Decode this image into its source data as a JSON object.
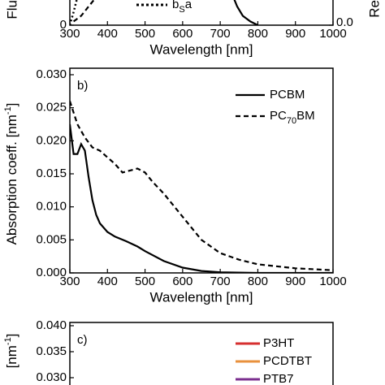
{
  "chart_data": [
    {
      "type": "line",
      "xlim": [
        300,
        1000
      ],
      "xticks": [
        300,
        400,
        500,
        600,
        700,
        800,
        900,
        1000
      ],
      "xlabel": "Wavelength [nm]",
      "ylabel": "Flu",
      "y2label": "Re",
      "ylim": [
        0,
        1
      ],
      "yticks": [
        0
      ],
      "y2lim": [
        0,
        1
      ],
      "y2ticks": [
        {
          "value": 0,
          "label": "0.0"
        }
      ],
      "legend_label": [
        "b",
        "S",
        "a"
      ],
      "series": [
        {
          "style": "dotted",
          "color": "#000",
          "x": [
            300,
            310,
            320
          ],
          "values": [
            0,
            0.07,
            0.15
          ]
        },
        {
          "style": "dashed",
          "color": "#000",
          "x": [
            310,
            330,
            350,
            370
          ],
          "values": [
            0.02,
            0.05,
            0.1,
            0.15
          ]
        },
        {
          "style": "solid",
          "color": "#000",
          "x": [
            735,
            745,
            760,
            780,
            800
          ],
          "values": [
            0.15,
            0.1,
            0.05,
            0.02,
            0
          ]
        }
      ]
    },
    {
      "type": "line",
      "panel_label": "b)",
      "xlim": [
        300,
        1000
      ],
      "xticks": [
        300,
        400,
        500,
        600,
        700,
        800,
        900,
        1000
      ],
      "xlabel": "Wavelength [nm]",
      "ylabel": [
        "Absorption coeff. [nm",
        "-1",
        "]"
      ],
      "ylim": [
        0,
        0.03
      ],
      "yticks": [
        {
          "value": 0,
          "label": "0.000"
        },
        {
          "value": 0.005,
          "label": "0.005"
        },
        {
          "value": 0.01,
          "label": "0.010"
        },
        {
          "value": 0.015,
          "label": "0.015"
        },
        {
          "value": 0.02,
          "label": "0.020"
        },
        {
          "value": 0.025,
          "label": "0.025"
        },
        {
          "value": 0.03,
          "label": "0.030"
        }
      ],
      "series": [
        {
          "name": "PCBM",
          "style": "solid",
          "color": "#000",
          "x": [
            300,
            310,
            320,
            330,
            340,
            350,
            360,
            370,
            380,
            400,
            420,
            450,
            480,
            500,
            550,
            600,
            650,
            700,
            800,
            1000
          ],
          "values": [
            0.0225,
            0.018,
            0.018,
            0.0195,
            0.0185,
            0.0145,
            0.011,
            0.0088,
            0.0075,
            0.0062,
            0.0055,
            0.0048,
            0.004,
            0.0033,
            0.0018,
            0.0008,
            0.0003,
            0.0001,
            0,
            0
          ]
        },
        {
          "name": [
            "PC",
            "70",
            "BM"
          ],
          "style": "dashed",
          "color": "#000",
          "x": [
            300,
            320,
            340,
            360,
            380,
            400,
            420,
            440,
            460,
            480,
            500,
            520,
            550,
            600,
            650,
            700,
            750,
            800,
            900,
            1000
          ],
          "values": [
            0.026,
            0.0225,
            0.0205,
            0.019,
            0.0185,
            0.0175,
            0.0165,
            0.0152,
            0.0155,
            0.0158,
            0.0152,
            0.0138,
            0.012,
            0.0085,
            0.005,
            0.003,
            0.002,
            0.0013,
            0.0007,
            0.0004
          ]
        }
      ]
    },
    {
      "type": "line",
      "panel_label": "c)",
      "xlim": [
        300,
        1000
      ],
      "ylabel": [
        "[nm",
        "-1",
        "]"
      ],
      "ylim": [
        0.03,
        0.04
      ],
      "yticks": [
        {
          "value": 0.03,
          "label": "0.030"
        },
        {
          "value": 0.035,
          "label": "0.035"
        },
        {
          "value": 0.04,
          "label": "0.040"
        }
      ],
      "series": [
        {
          "name": "P3HT",
          "color": "#d62f2f"
        },
        {
          "name": "PCDTBT",
          "color": "#e8913d"
        },
        {
          "name": "PTB7",
          "color": "#7b2f8f"
        }
      ]
    }
  ]
}
